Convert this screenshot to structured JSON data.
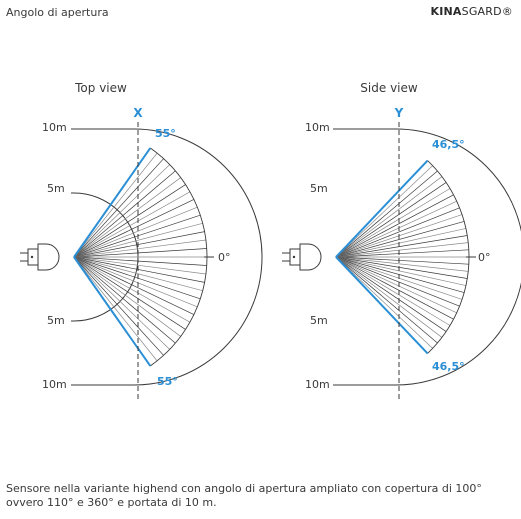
{
  "header": {
    "title": "Angolo di apertura",
    "brand_bold": "KINA",
    "brand_rest": "SGARD®"
  },
  "colors": {
    "accent": "#2b8fd6",
    "line": "#3a3a3a",
    "light_line": "#8a8a8a"
  },
  "top_view": {
    "title": "Top view",
    "axis_letter": "X",
    "angle_top": "55°",
    "angle_bottom": "55°",
    "dist_top": "10m",
    "dist_mid_top": "5m",
    "dist_mid_bottom": "5m",
    "dist_bottom": "10m",
    "zero_label": "0°",
    "half_angle_deg": 55
  },
  "side_view": {
    "title": "Side view",
    "axis_letter": "Y",
    "angle_top": "46,5°",
    "angle_bottom": "46,5°",
    "dist_top": "10m",
    "dist_mid_top": "5m",
    "dist_mid_bottom": "5m",
    "dist_bottom": "10m",
    "zero_label": "0°",
    "half_angle_deg": 46.5
  },
  "caption": "Sensore nella variante highend con angolo di apertura ampliato con copertura di 100° ovvero 110° e 360° e portata di 10 m."
}
